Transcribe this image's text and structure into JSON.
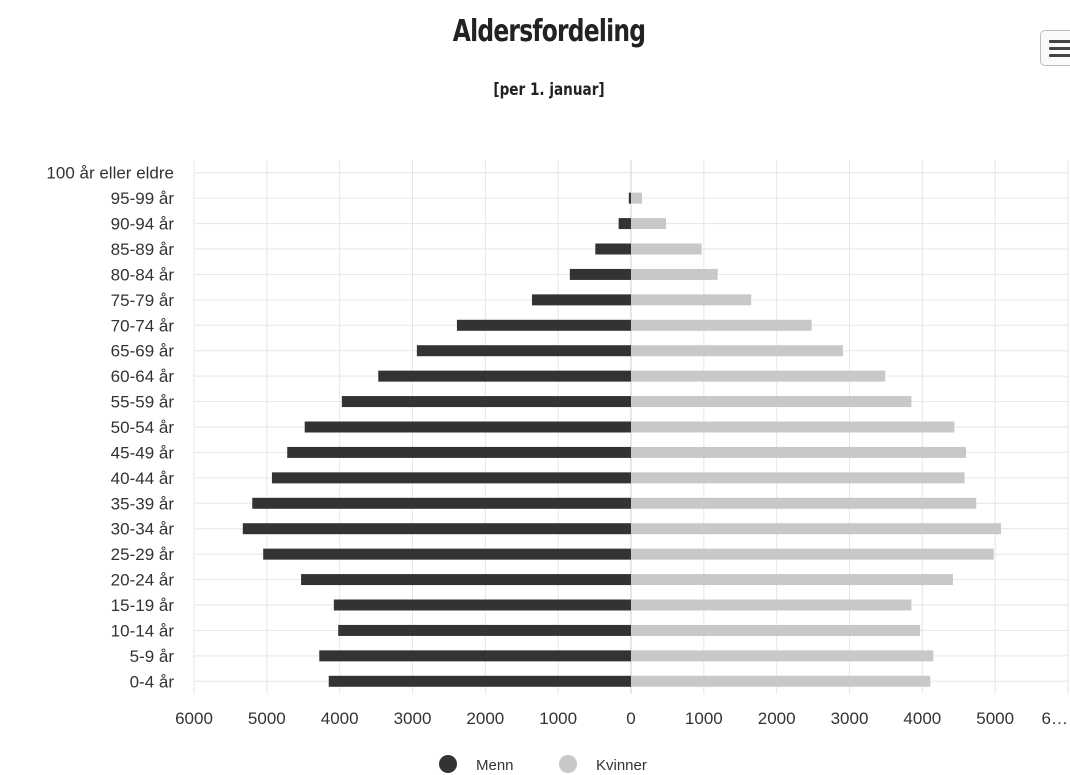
{
  "header": {
    "title": "Aldersfordeling",
    "subtitle": "[per 1. januar]"
  },
  "menu": {
    "icon": "hamburger-menu-icon"
  },
  "colors": {
    "menn": "#333333",
    "kvinner": "#c8c8c8",
    "grid": "#e6e6e6",
    "zero_line": "#cfcfcf"
  },
  "chart_data": {
    "type": "bar",
    "orientation": "horizontal",
    "title": "Aldersfordeling",
    "subtitle": "[per 1. januar]",
    "categories": [
      "0-4 år",
      "5-9 år",
      "10-14 år",
      "15-19 år",
      "20-24 år",
      "25-29 år",
      "30-34 år",
      "35-39 år",
      "40-44 år",
      "45-49 år",
      "50-54 år",
      "55-59 år",
      "60-64 år",
      "65-69 år",
      "70-74 år",
      "75-79 år",
      "80-84 år",
      "85-89 år",
      "90-94 år",
      "95-99 år",
      "100 år eller eldre"
    ],
    "series": [
      {
        "name": "Menn",
        "values": [
          -4150,
          -4280,
          -4020,
          -4080,
          -4530,
          -5050,
          -5330,
          -5200,
          -4930,
          -4720,
          -4480,
          -3970,
          -3470,
          -2940,
          -2390,
          -1360,
          -840,
          -490,
          -170,
          -30,
          0
        ]
      },
      {
        "name": "Kvinner",
        "values": [
          4110,
          4150,
          3970,
          3850,
          4420,
          4980,
          5080,
          4740,
          4580,
          4600,
          4440,
          3850,
          3490,
          2910,
          2480,
          1650,
          1190,
          970,
          480,
          150,
          0
        ]
      }
    ],
    "x_ticks": [
      "6000",
      "5000",
      "4000",
      "3000",
      "2000",
      "1000",
      "0",
      "1000",
      "2000",
      "3000",
      "4000",
      "5000",
      "6…"
    ],
    "xlim": [
      -6000,
      6000
    ],
    "grid": true,
    "legend": {
      "position": "bottom-center",
      "items": [
        "Menn",
        "Kvinner"
      ]
    }
  }
}
